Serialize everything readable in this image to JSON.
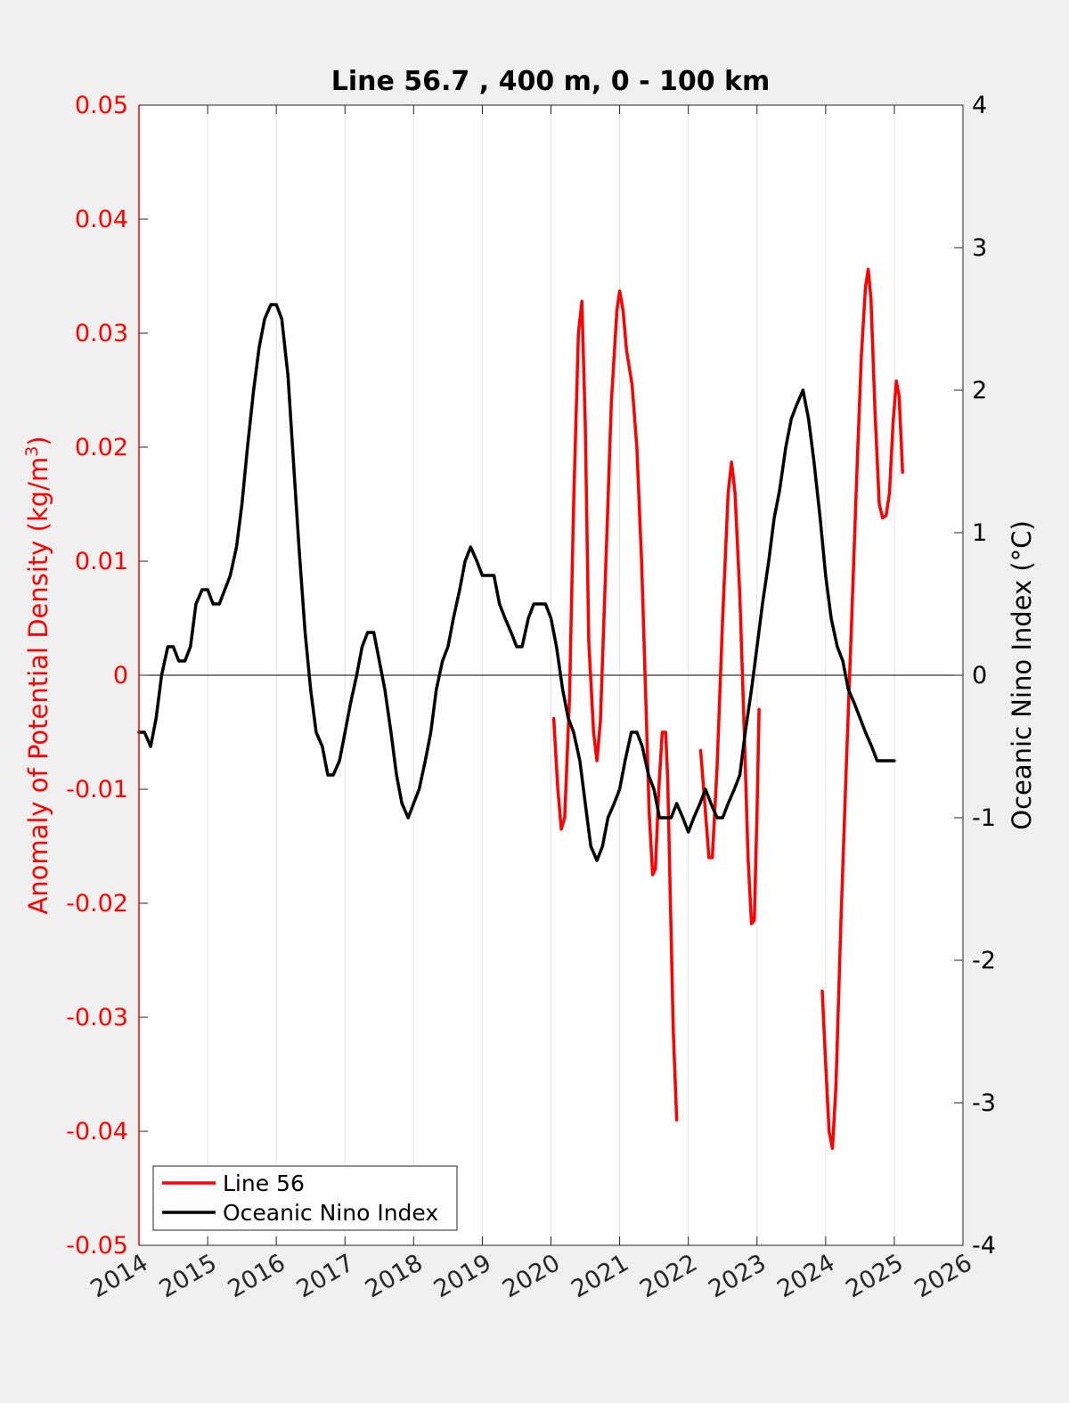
{
  "chart_data": {
    "type": "line",
    "title": "Line 56.7 , 400 m, 0 - 100 km",
    "xlabel": "",
    "ylabel_left": "Anomaly of Potential Density (kg/m",
    "ylabel_left_sup": "3",
    "ylabel_left_close": ")",
    "ylabel_right": "Oceanic Nino Index (°C)",
    "xlim": [
      2014,
      2026
    ],
    "ylim_left": [
      -0.05,
      0.05
    ],
    "ylim_right": [
      -4,
      4
    ],
    "x_ticks": [
      "2014",
      "2015",
      "2016",
      "2017",
      "2018",
      "2019",
      "2020",
      "2021",
      "2022",
      "2023",
      "2024",
      "2025",
      "2026"
    ],
    "y_left_ticks": [
      "0.05",
      "0.04",
      "0.03",
      "0.02",
      "0.01",
      "0",
      "-0.01",
      "-0.02",
      "-0.03",
      "-0.04",
      "-0.05"
    ],
    "y_right_ticks": [
      "4",
      "3",
      "2",
      "1",
      "0",
      "-1",
      "-2",
      "-3",
      "-4"
    ],
    "grid": "vertical",
    "zero_line": true,
    "legend_position": "bottom-left",
    "colors": {
      "line56": "#ff0000",
      "oni": "#000000",
      "left_axis": "#ff0000",
      "right_axis": "#000000"
    },
    "series": [
      {
        "name": "Line 56",
        "axis": "left",
        "segments": [
          [
            [
              2020.04,
              -0.0038
            ],
            [
              2020.1,
              -0.01
            ],
            [
              2020.15,
              -0.0135
            ],
            [
              2020.2,
              -0.0125
            ],
            [
              2020.27,
              -0.002
            ],
            [
              2020.33,
              0.015
            ],
            [
              2020.4,
              0.03
            ],
            [
              2020.45,
              0.0328
            ],
            [
              2020.5,
              0.022
            ],
            [
              2020.55,
              0.003
            ],
            [
              2020.62,
              -0.005
            ],
            [
              2020.67,
              -0.0075
            ],
            [
              2020.72,
              -0.004
            ],
            [
              2020.8,
              0.01
            ],
            [
              2020.88,
              0.024
            ],
            [
              2020.96,
              0.032
            ],
            [
              2021.0,
              0.0337
            ],
            [
              2021.05,
              0.032
            ],
            [
              2021.1,
              0.0285
            ],
            [
              2021.18,
              0.0255
            ],
            [
              2021.25,
              0.02
            ],
            [
              2021.32,
              0.01
            ],
            [
              2021.38,
              -0.002
            ],
            [
              2021.43,
              -0.012
            ],
            [
              2021.48,
              -0.0175
            ],
            [
              2021.52,
              -0.017
            ],
            [
              2021.57,
              -0.01
            ],
            [
              2021.62,
              -0.005
            ],
            [
              2021.67,
              -0.005
            ],
            [
              2021.7,
              -0.009
            ],
            [
              2021.74,
              -0.02
            ],
            [
              2021.78,
              -0.031
            ],
            [
              2021.83,
              -0.039
            ]
          ],
          [
            [
              2022.18,
              -0.0066
            ],
            [
              2022.25,
              -0.012
            ],
            [
              2022.3,
              -0.016
            ],
            [
              2022.35,
              -0.016
            ],
            [
              2022.42,
              -0.008
            ],
            [
              2022.5,
              0.005
            ],
            [
              2022.58,
              0.016
            ],
            [
              2022.63,
              0.0187
            ],
            [
              2022.68,
              0.016
            ],
            [
              2022.75,
              0.007
            ],
            [
              2022.82,
              -0.006
            ],
            [
              2022.87,
              -0.016
            ],
            [
              2022.92,
              -0.0218
            ],
            [
              2022.96,
              -0.0215
            ],
            [
              2023.0,
              -0.012
            ],
            [
              2023.03,
              -0.003
            ]
          ],
          [
            [
              2023.95,
              -0.0277
            ],
            [
              2024.0,
              -0.034
            ],
            [
              2024.05,
              -0.04
            ],
            [
              2024.1,
              -0.0415
            ],
            [
              2024.15,
              -0.036
            ],
            [
              2024.22,
              -0.022
            ],
            [
              2024.3,
              -0.008
            ],
            [
              2024.38,
              0.005
            ],
            [
              2024.45,
              0.017
            ],
            [
              2024.52,
              0.028
            ],
            [
              2024.58,
              0.034
            ],
            [
              2024.62,
              0.0356
            ],
            [
              2024.66,
              0.033
            ],
            [
              2024.72,
              0.023
            ],
            [
              2024.78,
              0.015
            ],
            [
              2024.83,
              0.0138
            ],
            [
              2024.88,
              0.014
            ],
            [
              2024.93,
              0.016
            ],
            [
              2024.98,
              0.022
            ],
            [
              2025.03,
              0.0258
            ],
            [
              2025.07,
              0.0245
            ],
            [
              2025.12,
              0.0178
            ]
          ]
        ]
      },
      {
        "name": "Oceanic Nino Index",
        "axis": "right",
        "x": [
          2014.0,
          2014.08,
          2014.17,
          2014.25,
          2014.33,
          2014.42,
          2014.5,
          2014.58,
          2014.67,
          2014.75,
          2014.83,
          2014.92,
          2015.0,
          2015.08,
          2015.17,
          2015.25,
          2015.33,
          2015.42,
          2015.5,
          2015.58,
          2015.67,
          2015.75,
          2015.83,
          2015.92,
          2016.0,
          2016.08,
          2016.17,
          2016.25,
          2016.33,
          2016.42,
          2016.5,
          2016.58,
          2016.67,
          2016.75,
          2016.83,
          2016.92,
          2017.0,
          2017.08,
          2017.17,
          2017.25,
          2017.33,
          2017.42,
          2017.5,
          2017.58,
          2017.67,
          2017.75,
          2017.83,
          2017.92,
          2018.0,
          2018.08,
          2018.17,
          2018.25,
          2018.33,
          2018.42,
          2018.5,
          2018.58,
          2018.67,
          2018.75,
          2018.83,
          2018.92,
          2019.0,
          2019.08,
          2019.17,
          2019.25,
          2019.33,
          2019.42,
          2019.5,
          2019.58,
          2019.67,
          2019.75,
          2019.83,
          2019.92,
          2020.0,
          2020.08,
          2020.17,
          2020.25,
          2020.33,
          2020.42,
          2020.5,
          2020.58,
          2020.67,
          2020.75,
          2020.83,
          2020.92,
          2021.0,
          2021.08,
          2021.17,
          2021.25,
          2021.33,
          2021.42,
          2021.5,
          2021.58,
          2021.67,
          2021.75,
          2021.83,
          2021.92,
          2022.0,
          2022.08,
          2022.17,
          2022.25,
          2022.33,
          2022.42,
          2022.5,
          2022.58,
          2022.67,
          2022.75,
          2022.83,
          2022.92,
          2023.0,
          2023.08,
          2023.17,
          2023.25,
          2023.33,
          2023.42,
          2023.5,
          2023.58,
          2023.67,
          2023.75,
          2023.83,
          2023.92,
          2024.0,
          2024.08,
          2024.17,
          2024.25,
          2024.33,
          2024.42,
          2024.5,
          2024.58,
          2024.67,
          2024.75,
          2024.83,
          2024.92,
          2025.0
        ],
        "values": [
          -0.4,
          -0.4,
          -0.5,
          -0.3,
          0.0,
          0.2,
          0.2,
          0.1,
          0.1,
          0.2,
          0.5,
          0.6,
          0.6,
          0.5,
          0.5,
          0.6,
          0.7,
          0.9,
          1.2,
          1.6,
          2.0,
          2.3,
          2.5,
          2.6,
          2.6,
          2.5,
          2.1,
          1.5,
          0.9,
          0.3,
          -0.1,
          -0.4,
          -0.5,
          -0.7,
          -0.7,
          -0.6,
          -0.4,
          -0.2,
          0.0,
          0.2,
          0.3,
          0.3,
          0.1,
          -0.1,
          -0.4,
          -0.7,
          -0.9,
          -1.0,
          -0.9,
          -0.8,
          -0.6,
          -0.4,
          -0.1,
          0.1,
          0.2,
          0.4,
          0.6,
          0.8,
          0.9,
          0.8,
          0.7,
          0.7,
          0.7,
          0.5,
          0.4,
          0.3,
          0.2,
          0.2,
          0.4,
          0.5,
          0.5,
          0.5,
          0.4,
          0.2,
          -0.1,
          -0.3,
          -0.4,
          -0.6,
          -0.9,
          -1.2,
          -1.3,
          -1.2,
          -1.0,
          -0.9,
          -0.8,
          -0.6,
          -0.4,
          -0.4,
          -0.5,
          -0.7,
          -0.8,
          -1.0,
          -1.0,
          -1.0,
          -0.9,
          -1.0,
          -1.1,
          -1.0,
          -0.9,
          -0.8,
          -0.9,
          -1.0,
          -1.0,
          -0.9,
          -0.8,
          -0.7,
          -0.4,
          -0.1,
          0.2,
          0.5,
          0.8,
          1.1,
          1.3,
          1.6,
          1.8,
          1.9,
          2.0,
          1.8,
          1.5,
          1.1,
          0.7,
          0.4,
          0.2,
          0.1,
          -0.1,
          -0.2,
          -0.3,
          -0.4,
          -0.5,
          -0.6,
          -0.6,
          -0.6,
          -0.6
        ]
      }
    ]
  }
}
